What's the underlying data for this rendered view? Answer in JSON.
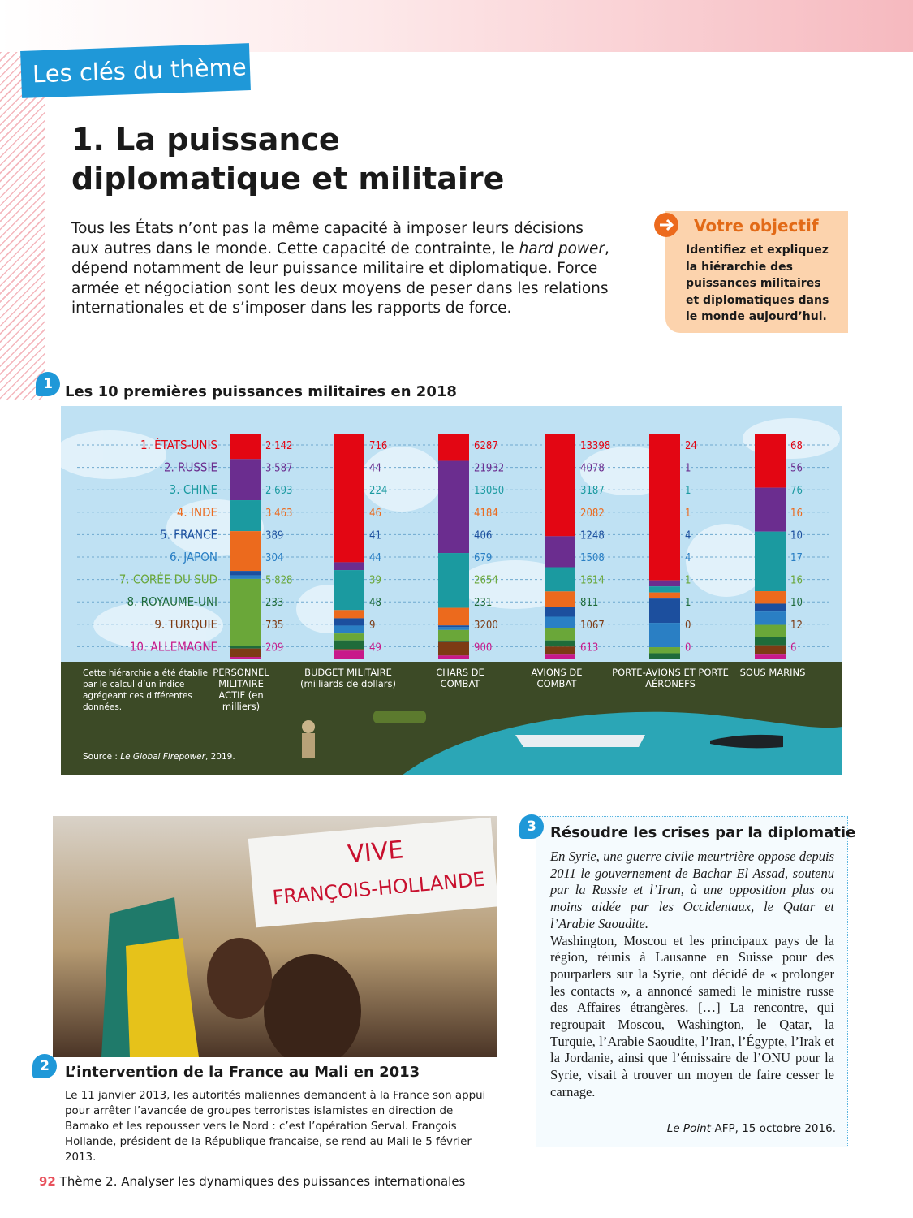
{
  "header": {
    "tag": "Les clés du thème"
  },
  "title": "1. La puissance diplomatique et militaire",
  "intro": [
    "Tous les États n’ont pas la même capacité à imposer leurs décisions aux autres dans le monde. Cette capacité de contrainte, le ",
    "hard power",
    ", dépend notamment de leur puissance militaire et diplomatique. Force armée et négociation sont les deux moyens de peser dans les relations internationales et de s’imposer dans les rapports de force."
  ],
  "objective": {
    "title": "Votre objectif",
    "text": "Identifiez et expliquez la hiérarchie des puissances militaires et diplomatiques dans le monde aujourd’hui."
  },
  "doc1": {
    "number": "1"
  },
  "chart_data": {
    "type": "stacked-bar",
    "title": "Les 10 premières puissances militaires en 2018",
    "categories": [
      "1. ÉTATS-UNIS",
      "2. RUSSIE",
      "3. CHINE",
      "4. INDE",
      "5. FRANCE",
      "6. JAPON",
      "7. CORÉE DU SUD",
      "8. ROYAUME-UNI",
      "9. TURQUIE",
      "10. ALLEMAGNE"
    ],
    "colors": [
      "#e30613",
      "#6b2d8f",
      "#1b9aa0",
      "#ec6a1d",
      "#1c4f9e",
      "#2a7fc4",
      "#6aa739",
      "#1f6b3a",
      "#7d3b14",
      "#c8198a"
    ],
    "series": [
      {
        "name": "PERSONNEL MILITAIRE ACTIF (en milliers)",
        "values": [
          2142,
          3587,
          2693,
          3463,
          389,
          304,
          5828,
          233,
          735,
          209
        ],
        "value_labels": [
          "2 142",
          "3 587",
          "2 693",
          "3 463",
          "389",
          "304",
          "5 828",
          "233",
          "735",
          "209"
        ]
      },
      {
        "name": "BUDGET MILITAIRE (milliards de dollars)",
        "values": [
          716,
          44,
          224,
          46,
          41,
          44,
          39,
          48,
          9,
          49
        ]
      },
      {
        "name": "CHARS DE COMBAT",
        "values": [
          6287,
          21932,
          13050,
          4184,
          406,
          679,
          2654,
          231,
          3200,
          900
        ]
      },
      {
        "name": "AVIONS DE COMBAT",
        "values": [
          13398,
          4078,
          3187,
          2082,
          1248,
          1508,
          1614,
          811,
          1067,
          613
        ]
      },
      {
        "name": "PORTE-AVIONS ET PORTE AÉRONEFS",
        "values": [
          24,
          1,
          1,
          1,
          4,
          4,
          1,
          1,
          0,
          0
        ]
      },
      {
        "name": "SOUS MARINS",
        "values": [
          68,
          56,
          76,
          16,
          10,
          17,
          16,
          10,
          12,
          6
        ]
      }
    ],
    "note": "Cette hiérarchie a été établie par le calcul d’un indice agrégeant ces différentes données.",
    "source": [
      "Source : ",
      "Le Global Firepower",
      ", 2019."
    ]
  },
  "doc2": {
    "number": "2",
    "photo_sign": [
      "VIVE",
      "FRANÇOIS-HOLLANDE"
    ],
    "title": "L’intervention de la France au Mali en 2013",
    "text": "Le 11 janvier 2013, les autorités maliennes demandent à la France son appui pour arrêter l’avancée de groupes terroristes islamistes en direction de Bamako et les repousser vers le Nord : c’est l’opération Serval. François Hollande, président de la République française, se rend au Mali le 5 février 2013."
  },
  "doc3": {
    "number": "3",
    "title": "Résoudre les crises par la diplomatie",
    "chapeau": "En Syrie, une guerre civile meurtrière oppose depuis 2011 le gouvernement de Bachar El Assad, soutenu par la Russie et l’Iran, à une opposition plus ou moins aidée par les Occidentaux, le Qatar et l’Arabie Saoudite.",
    "text": "Washington, Moscou et les principaux pays de la région, réunis à Lausanne en Suisse pour des pourparlers sur la Syrie, ont décidé de « prolonger les contacts », a annoncé samedi le ministre russe des Affaires étrangères. […] La rencontre, qui regroupait Moscou, Washington, le Qatar, la Turquie, l’Arabie Saoudite, l’Iran, l’Égypte, l’Irak et la Jordanie, ainsi que l’émissaire de l’ONU pour la Syrie, visait à trouver un moyen de faire cesser le carnage.",
    "source": [
      "Le Point",
      "-AFP, 15 octobre 2016."
    ]
  },
  "footer": {
    "page": "92",
    "text": "Thème 2. Analyser les dynamiques des puissances internationales"
  }
}
